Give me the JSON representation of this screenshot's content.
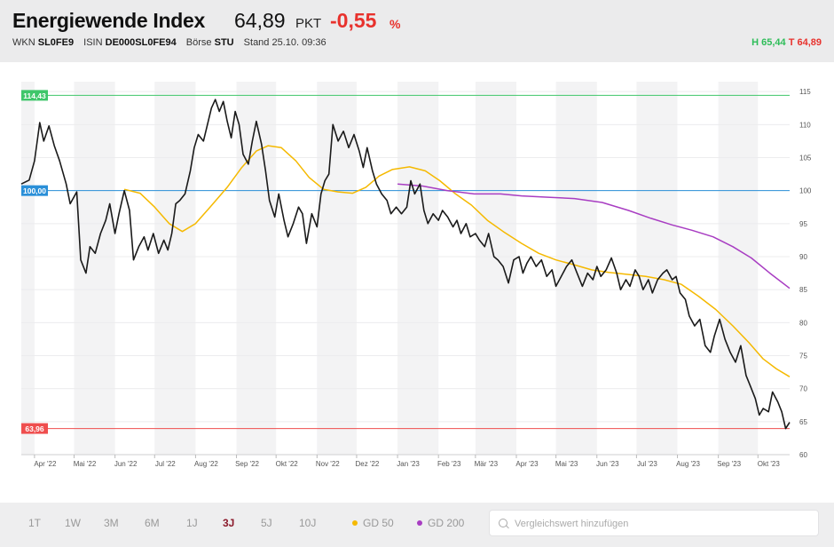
{
  "header": {
    "title": "Energiewende Index",
    "price": "64,89",
    "unit": "PKT",
    "change": "-0,55",
    "change_unit": "%",
    "wkn_label": "WKN",
    "wkn": "SL0FE9",
    "isin_label": "ISIN",
    "isin": "DE000SL0FE94",
    "exchange_label": "Börse",
    "exchange": "STU",
    "stand": "Stand 25.10. 09:36",
    "high": "H 65,44",
    "low": "T 64,89"
  },
  "timeframes": [
    {
      "label": "1T",
      "active": false
    },
    {
      "label": "1W",
      "active": false
    },
    {
      "label": "3M",
      "active": false
    },
    {
      "label": "6M",
      "active": false
    },
    {
      "label": "1J",
      "active": false
    },
    {
      "label": "3J",
      "active": true
    },
    {
      "label": "5J",
      "active": false
    },
    {
      "label": "10J",
      "active": false
    }
  ],
  "legend": {
    "gd50": {
      "label": "GD 50",
      "color": "#f5b900"
    },
    "gd200": {
      "label": "GD 200",
      "color": "#a83dc2"
    }
  },
  "search": {
    "placeholder": "Vergleichswert hinzufügen"
  },
  "chart_data": {
    "type": "line",
    "x_tick_labels": [
      "Apr '22",
      "Mai '22",
      "Jun '22",
      "Jul '22",
      "Aug '22",
      "Sep '22",
      "Okt '22",
      "Nov '22",
      "Dez '22",
      "Jan '23",
      "Feb '23",
      "Mär '23",
      "Apr '23",
      "Mai '23",
      "Jun '23",
      "Jul '23",
      "Aug '23",
      "Sep '23",
      "Okt '23"
    ],
    "y_ticks": [
      60,
      65,
      70,
      75,
      80,
      85,
      90,
      95,
      100,
      105,
      110,
      115
    ],
    "ylim": [
      60,
      116.5
    ],
    "x_range": [
      "2022-03-22",
      "2023-10-25"
    ],
    "grid": true,
    "reference_lines": [
      {
        "value": 114.43,
        "label": "114,43",
        "color": "#3fc66a"
      },
      {
        "value": 100.0,
        "label": "100,00",
        "color": "#2a8fd8"
      },
      {
        "value": 63.96,
        "label": "63,96",
        "color": "#ef4e4e"
      }
    ],
    "series": [
      {
        "key": "index",
        "color": "#1a1a1a",
        "points": [
          [
            "2022-03-22",
            101.0
          ],
          [
            "2022-03-28",
            101.6
          ],
          [
            "2022-04-01",
            104.5
          ],
          [
            "2022-04-05",
            110.3
          ],
          [
            "2022-04-08",
            107.5
          ],
          [
            "2022-04-12",
            109.8
          ],
          [
            "2022-04-16",
            106.8
          ],
          [
            "2022-04-20",
            104.5
          ],
          [
            "2022-04-25",
            101.0
          ],
          [
            "2022-04-28",
            98.0
          ],
          [
            "2022-05-03",
            99.8
          ],
          [
            "2022-05-06",
            89.5
          ],
          [
            "2022-05-10",
            87.5
          ],
          [
            "2022-05-13",
            91.5
          ],
          [
            "2022-05-17",
            90.5
          ],
          [
            "2022-05-21",
            93.5
          ],
          [
            "2022-05-25",
            95.5
          ],
          [
            "2022-05-28",
            98.0
          ],
          [
            "2022-06-01",
            93.5
          ],
          [
            "2022-06-04",
            96.5
          ],
          [
            "2022-06-08",
            100.0
          ],
          [
            "2022-06-12",
            97.0
          ],
          [
            "2022-06-15",
            89.5
          ],
          [
            "2022-06-19",
            91.5
          ],
          [
            "2022-06-23",
            93.0
          ],
          [
            "2022-06-26",
            91.0
          ],
          [
            "2022-06-30",
            93.5
          ],
          [
            "2022-07-04",
            90.5
          ],
          [
            "2022-07-08",
            92.5
          ],
          [
            "2022-07-11",
            91.0
          ],
          [
            "2022-07-14",
            93.5
          ],
          [
            "2022-07-17",
            98.0
          ],
          [
            "2022-07-20",
            98.5
          ],
          [
            "2022-07-24",
            99.5
          ],
          [
            "2022-07-28",
            103.0
          ],
          [
            "2022-07-31",
            106.5
          ],
          [
            "2022-08-03",
            108.5
          ],
          [
            "2022-08-07",
            107.5
          ],
          [
            "2022-08-10",
            110.0
          ],
          [
            "2022-08-13",
            112.5
          ],
          [
            "2022-08-16",
            113.8
          ],
          [
            "2022-08-19",
            112.0
          ],
          [
            "2022-08-22",
            113.5
          ],
          [
            "2022-08-25",
            110.5
          ],
          [
            "2022-08-28",
            108.0
          ],
          [
            "2022-08-31",
            112.0
          ],
          [
            "2022-09-03",
            110.0
          ],
          [
            "2022-09-06",
            105.5
          ],
          [
            "2022-09-10",
            104.0
          ],
          [
            "2022-09-13",
            107.5
          ],
          [
            "2022-09-16",
            110.5
          ],
          [
            "2022-09-20",
            107.0
          ],
          [
            "2022-09-23",
            103.0
          ],
          [
            "2022-09-26",
            98.5
          ],
          [
            "2022-09-30",
            96.0
          ],
          [
            "2022-10-03",
            99.5
          ],
          [
            "2022-10-07",
            95.5
          ],
          [
            "2022-10-10",
            93.0
          ],
          [
            "2022-10-14",
            95.0
          ],
          [
            "2022-10-18",
            97.5
          ],
          [
            "2022-10-21",
            96.5
          ],
          [
            "2022-10-24",
            92.0
          ],
          [
            "2022-10-28",
            96.5
          ],
          [
            "2022-11-01",
            94.5
          ],
          [
            "2022-11-04",
            99.5
          ],
          [
            "2022-11-07",
            101.5
          ],
          [
            "2022-11-10",
            102.5
          ],
          [
            "2022-11-13",
            110.0
          ],
          [
            "2022-11-17",
            107.5
          ],
          [
            "2022-11-21",
            109.0
          ],
          [
            "2022-11-25",
            106.5
          ],
          [
            "2022-11-29",
            108.5
          ],
          [
            "2022-12-03",
            106.0
          ],
          [
            "2022-12-06",
            103.5
          ],
          [
            "2022-12-09",
            106.5
          ],
          [
            "2022-12-13",
            103.0
          ],
          [
            "2022-12-16",
            101.0
          ],
          [
            "2022-12-20",
            99.5
          ],
          [
            "2022-12-24",
            98.5
          ],
          [
            "2022-12-27",
            96.5
          ],
          [
            "2022-12-31",
            97.5
          ],
          [
            "2023-01-04",
            96.5
          ],
          [
            "2023-01-08",
            97.5
          ],
          [
            "2023-01-11",
            101.5
          ],
          [
            "2023-01-14",
            99.5
          ],
          [
            "2023-01-18",
            101.0
          ],
          [
            "2023-01-21",
            97.0
          ],
          [
            "2023-01-24",
            95.0
          ],
          [
            "2023-01-28",
            96.5
          ],
          [
            "2023-02-01",
            95.5
          ],
          [
            "2023-02-04",
            97.0
          ],
          [
            "2023-02-08",
            96.0
          ],
          [
            "2023-02-12",
            94.5
          ],
          [
            "2023-02-15",
            95.5
          ],
          [
            "2023-02-18",
            93.5
          ],
          [
            "2023-02-22",
            95.0
          ],
          [
            "2023-02-25",
            93.0
          ],
          [
            "2023-03-01",
            93.5
          ],
          [
            "2023-03-04",
            92.5
          ],
          [
            "2023-03-08",
            91.5
          ],
          [
            "2023-03-11",
            93.5
          ],
          [
            "2023-03-15",
            90.0
          ],
          [
            "2023-03-18",
            89.5
          ],
          [
            "2023-03-22",
            88.5
          ],
          [
            "2023-03-26",
            86.0
          ],
          [
            "2023-03-30",
            89.5
          ],
          [
            "2023-04-03",
            90.0
          ],
          [
            "2023-04-06",
            87.5
          ],
          [
            "2023-04-09",
            89.0
          ],
          [
            "2023-04-12",
            90.0
          ],
          [
            "2023-04-16",
            88.5
          ],
          [
            "2023-04-20",
            89.5
          ],
          [
            "2023-04-24",
            87.0
          ],
          [
            "2023-04-28",
            88.0
          ],
          [
            "2023-05-01",
            85.5
          ],
          [
            "2023-05-05",
            87.0
          ],
          [
            "2023-05-09",
            88.5
          ],
          [
            "2023-05-13",
            89.5
          ],
          [
            "2023-05-17",
            87.5
          ],
          [
            "2023-05-21",
            85.5
          ],
          [
            "2023-05-25",
            87.5
          ],
          [
            "2023-05-29",
            86.5
          ],
          [
            "2023-06-01",
            88.5
          ],
          [
            "2023-06-04",
            87.0
          ],
          [
            "2023-06-08",
            88.0
          ],
          [
            "2023-06-12",
            89.8
          ],
          [
            "2023-06-16",
            87.5
          ],
          [
            "2023-06-19",
            85.0
          ],
          [
            "2023-06-23",
            86.5
          ],
          [
            "2023-06-26",
            85.5
          ],
          [
            "2023-06-30",
            88.0
          ],
          [
            "2023-07-03",
            87.0
          ],
          [
            "2023-07-06",
            85.0
          ],
          [
            "2023-07-10",
            86.5
          ],
          [
            "2023-07-13",
            84.5
          ],
          [
            "2023-07-17",
            86.5
          ],
          [
            "2023-07-21",
            87.5
          ],
          [
            "2023-07-24",
            88.0
          ],
          [
            "2023-07-28",
            86.5
          ],
          [
            "2023-07-31",
            87.0
          ],
          [
            "2023-08-03",
            84.5
          ],
          [
            "2023-08-07",
            83.5
          ],
          [
            "2023-08-10",
            81.0
          ],
          [
            "2023-08-14",
            79.5
          ],
          [
            "2023-08-18",
            80.5
          ],
          [
            "2023-08-22",
            76.5
          ],
          [
            "2023-08-26",
            75.5
          ],
          [
            "2023-08-29",
            78.0
          ],
          [
            "2023-09-02",
            80.5
          ],
          [
            "2023-09-06",
            77.5
          ],
          [
            "2023-09-10",
            75.5
          ],
          [
            "2023-09-14",
            74.0
          ],
          [
            "2023-09-18",
            76.5
          ],
          [
            "2023-09-22",
            72.0
          ],
          [
            "2023-09-25",
            70.5
          ],
          [
            "2023-09-29",
            68.5
          ],
          [
            "2023-10-02",
            66.0
          ],
          [
            "2023-10-05",
            67.0
          ],
          [
            "2023-10-09",
            66.5
          ],
          [
            "2023-10-12",
            69.5
          ],
          [
            "2023-10-16",
            68.0
          ],
          [
            "2023-10-19",
            66.5
          ],
          [
            "2023-10-22",
            63.96
          ],
          [
            "2023-10-25",
            64.89
          ]
        ]
      },
      {
        "key": "gd50",
        "color": "#f5b900",
        "points": [
          [
            "2022-06-08",
            100.2
          ],
          [
            "2022-06-20",
            99.6
          ],
          [
            "2022-07-01",
            97.5
          ],
          [
            "2022-07-12",
            95.0
          ],
          [
            "2022-07-22",
            93.8
          ],
          [
            "2022-08-01",
            95.0
          ],
          [
            "2022-08-12",
            97.5
          ],
          [
            "2022-08-25",
            100.5
          ],
          [
            "2022-09-05",
            103.5
          ],
          [
            "2022-09-16",
            106.0
          ],
          [
            "2022-09-25",
            106.8
          ],
          [
            "2022-10-05",
            106.5
          ],
          [
            "2022-10-16",
            104.5
          ],
          [
            "2022-10-26",
            102.0
          ],
          [
            "2022-11-06",
            100.2
          ],
          [
            "2022-11-17",
            99.8
          ],
          [
            "2022-11-28",
            99.6
          ],
          [
            "2022-12-08",
            100.5
          ],
          [
            "2022-12-18",
            102.2
          ],
          [
            "2022-12-28",
            103.2
          ],
          [
            "2023-01-10",
            103.6
          ],
          [
            "2023-01-22",
            103.0
          ],
          [
            "2023-02-02",
            101.5
          ],
          [
            "2023-02-14",
            99.5
          ],
          [
            "2023-02-26",
            97.8
          ],
          [
            "2023-03-10",
            95.5
          ],
          [
            "2023-03-22",
            93.8
          ],
          [
            "2023-04-05",
            92.0
          ],
          [
            "2023-04-18",
            90.5
          ],
          [
            "2023-05-01",
            89.5
          ],
          [
            "2023-05-14",
            88.8
          ],
          [
            "2023-05-28",
            88.0
          ],
          [
            "2023-06-10",
            87.6
          ],
          [
            "2023-06-25",
            87.3
          ],
          [
            "2023-07-08",
            87.0
          ],
          [
            "2023-07-22",
            86.5
          ],
          [
            "2023-08-04",
            85.8
          ],
          [
            "2023-08-17",
            84.0
          ],
          [
            "2023-08-30",
            82.0
          ],
          [
            "2023-09-12",
            79.5
          ],
          [
            "2023-09-24",
            77.0
          ],
          [
            "2023-10-05",
            74.5
          ],
          [
            "2023-10-15",
            73.0
          ],
          [
            "2023-10-25",
            71.8
          ]
        ]
      },
      {
        "key": "gd200",
        "color": "#a83dc2",
        "points": [
          [
            "2023-01-01",
            101.0
          ],
          [
            "2023-01-20",
            100.7
          ],
          [
            "2023-02-08",
            100.0
          ],
          [
            "2023-02-28",
            99.5
          ],
          [
            "2023-03-20",
            99.5
          ],
          [
            "2023-04-05",
            99.2
          ],
          [
            "2023-04-25",
            99.0
          ],
          [
            "2023-05-15",
            98.8
          ],
          [
            "2023-06-05",
            98.2
          ],
          [
            "2023-06-25",
            97.0
          ],
          [
            "2023-07-12",
            95.8
          ],
          [
            "2023-07-28",
            94.8
          ],
          [
            "2023-08-12",
            94.0
          ],
          [
            "2023-08-28",
            93.0
          ],
          [
            "2023-09-12",
            91.5
          ],
          [
            "2023-09-26",
            89.8
          ],
          [
            "2023-10-10",
            87.5
          ],
          [
            "2023-10-25",
            85.2
          ]
        ]
      }
    ]
  }
}
